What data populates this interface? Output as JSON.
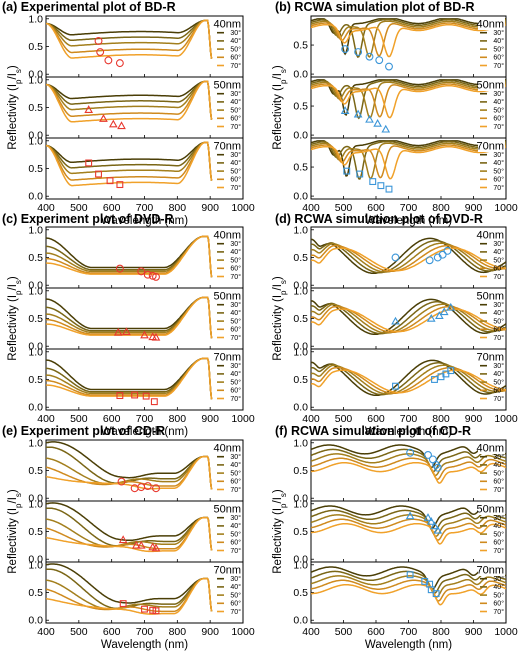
{
  "figure": {
    "colors": {
      "30": "#4a3e06",
      "40": "#7a6616",
      "50": "#a37f1d",
      "60": "#cf8a1e",
      "70": "#f0a12a"
    },
    "marker_colors": {
      "experiment": "#e8382f",
      "simulation": "#3a95d8"
    },
    "thickness_labels": [
      "40nm",
      "50nm",
      "70nm"
    ],
    "angle_labels": [
      "30°",
      "40°",
      "50°",
      "60°",
      "70°"
    ],
    "xlabel": "Wavelength (nm)",
    "ylabel": "Reflectivity (I",
    "ylabel_sub1": "p",
    "ylabel_mid": "/I",
    "ylabel_sub2": "s",
    "ylabel_end": ")"
  },
  "chart_data": [
    {
      "id": "a",
      "type": "line",
      "title": "(a) Experimental plot of BD-R",
      "kind": "experiment",
      "disc": "BD-R",
      "xlim": [
        400,
        1000
      ],
      "xticks": [
        400,
        500,
        600,
        700,
        800,
        900,
        1000
      ],
      "subplots": [
        {
          "thickness": "40nm",
          "ylim": [
            -0.05,
            1.05
          ],
          "yticks": [
            0.0,
            0.5,
            1.0
          ],
          "markers": [
            [
              560,
              0.6
            ],
            [
              565,
              0.4
            ],
            [
              590,
              0.25
            ],
            [
              625,
              0.2
            ]
          ],
          "marker_shape": "circle"
        },
        {
          "thickness": "50nm",
          "ylim": [
            -0.05,
            1.05
          ],
          "yticks": [
            0.0,
            0.5,
            1.0
          ],
          "markers": [
            [
              530,
              0.46
            ],
            [
              575,
              0.3
            ],
            [
              605,
              0.2
            ],
            [
              630,
              0.17
            ]
          ],
          "marker_shape": "triangle"
        },
        {
          "thickness": "70nm",
          "ylim": [
            -0.05,
            1.05
          ],
          "yticks": [
            0.0,
            0.5,
            1.0
          ],
          "markers": [
            [
              530,
              0.6
            ],
            [
              560,
              0.4
            ],
            [
              595,
              0.28
            ],
            [
              625,
              0.21
            ]
          ],
          "marker_shape": "square"
        }
      ]
    },
    {
      "id": "b",
      "type": "line",
      "title": "(b) RCWA simulation plot of BD-R",
      "kind": "simulation",
      "disc": "BD-R",
      "xlim": [
        400,
        1000
      ],
      "xticks": [
        400,
        500,
        600,
        700,
        800,
        900,
        1000
      ],
      "subplots": [
        {
          "thickness": "40nm",
          "ylim": [
            -0.05,
            1.0
          ],
          "yticks": [
            0.0,
            0.5
          ],
          "markers": [
            [
              505,
              0.43
            ],
            [
              545,
              0.38
            ],
            [
              580,
              0.3
            ],
            [
              610,
              0.24
            ],
            [
              640,
              0.13
            ]
          ],
          "marker_shape": "circle"
        },
        {
          "thickness": "50nm",
          "ylim": [
            -0.05,
            1.0
          ],
          "yticks": [
            0.0,
            0.5
          ],
          "markers": [
            [
              505,
              0.42
            ],
            [
              545,
              0.36
            ],
            [
              580,
              0.27
            ],
            [
              605,
              0.2
            ],
            [
              630,
              0.1
            ]
          ],
          "marker_shape": "triangle"
        },
        {
          "thickness": "70nm",
          "ylim": [
            -0.05,
            1.0
          ],
          "yticks": [
            0.0,
            0.5
          ],
          "markers": [
            [
              510,
              0.43
            ],
            [
              550,
              0.38
            ],
            [
              590,
              0.25
            ],
            [
              615,
              0.18
            ],
            [
              640,
              0.12
            ]
          ],
          "marker_shape": "square"
        }
      ]
    },
    {
      "id": "c",
      "type": "line",
      "title": "(c) Experiment plot of DVD-R",
      "kind": "experiment",
      "disc": "DVD-R",
      "xlim": [
        400,
        1000
      ],
      "xticks": [
        400,
        500,
        600,
        700,
        800,
        900,
        1000
      ],
      "subplots": [
        {
          "thickness": "40nm",
          "ylim": [
            -0.05,
            1.05
          ],
          "yticks": [
            0.0,
            0.5,
            1.0
          ],
          "markers": [
            [
              625,
              0.3
            ],
            [
              690,
              0.25
            ],
            [
              710,
              0.19
            ],
            [
              725,
              0.17
            ],
            [
              735,
              0.15
            ]
          ],
          "marker_shape": "circle"
        },
        {
          "thickness": "50nm",
          "ylim": [
            -0.05,
            1.05
          ],
          "yticks": [
            0.0,
            0.5,
            1.0
          ],
          "markers": [
            [
              620,
              0.25
            ],
            [
              645,
              0.26
            ],
            [
              700,
              0.2
            ],
            [
              725,
              0.17
            ],
            [
              735,
              0.16
            ]
          ],
          "marker_shape": "triangle"
        },
        {
          "thickness": "70nm",
          "ylim": [
            -0.05,
            1.05
          ],
          "yticks": [
            0.0,
            0.5,
            1.0
          ],
          "markers": [
            [
              625,
              0.21
            ],
            [
              670,
              0.22
            ],
            [
              705,
              0.2
            ],
            [
              730,
              0.1
            ]
          ],
          "marker_shape": "square"
        }
      ]
    },
    {
      "id": "d",
      "type": "line",
      "title": "(d) RCWA simulation plot of DVD-R",
      "kind": "simulation",
      "disc": "DVD-R",
      "xlim": [
        400,
        1000
      ],
      "xticks": [
        400,
        500,
        600,
        700,
        800,
        900,
        1000
      ],
      "subplots": [
        {
          "thickness": "40nm",
          "ylim": [
            -0.05,
            1.05
          ],
          "yticks": [
            0.0,
            0.5,
            1.0
          ],
          "markers": [
            [
              660,
              0.5
            ],
            [
              765,
              0.45
            ],
            [
              790,
              0.5
            ],
            [
              805,
              0.55
            ],
            [
              820,
              0.62
            ]
          ],
          "marker_shape": "circle"
        },
        {
          "thickness": "50nm",
          "ylim": [
            -0.05,
            1.05
          ],
          "yticks": [
            0.0,
            0.5,
            1.0
          ],
          "markers": [
            [
              660,
              0.45
            ],
            [
              770,
              0.5
            ],
            [
              795,
              0.55
            ],
            [
              810,
              0.62
            ],
            [
              830,
              0.7
            ]
          ],
          "marker_shape": "triangle"
        },
        {
          "thickness": "70nm",
          "ylim": [
            -0.05,
            1.05
          ],
          "yticks": [
            0.0,
            0.5,
            1.0
          ],
          "markers": [
            [
              660,
              0.38
            ],
            [
              780,
              0.5
            ],
            [
              800,
              0.55
            ],
            [
              815,
              0.6
            ],
            [
              830,
              0.66
            ]
          ],
          "marker_shape": "square"
        }
      ]
    },
    {
      "id": "e",
      "type": "line",
      "title": "(e) Experiment plot of CD-R",
      "kind": "experiment",
      "disc": "CD-R",
      "xlim": [
        400,
        1000
      ],
      "xticks": [
        400,
        500,
        600,
        700,
        800,
        900,
        1000
      ],
      "subplots": [
        {
          "thickness": "40nm",
          "ylim": [
            -0.05,
            1.05
          ],
          "yticks": [
            0.0,
            0.5,
            1.0
          ],
          "markers": [
            [
              630,
              0.3
            ],
            [
              670,
              0.18
            ],
            [
              690,
              0.2
            ],
            [
              710,
              0.22
            ],
            [
              735,
              0.18
            ]
          ],
          "marker_shape": "circle"
        },
        {
          "thickness": "50nm",
          "ylim": [
            -0.05,
            1.05
          ],
          "yticks": [
            0.0,
            0.5,
            1.0
          ],
          "markers": [
            [
              635,
              0.35
            ],
            [
              675,
              0.25
            ],
            [
              690,
              0.25
            ],
            [
              725,
              0.22
            ],
            [
              735,
              0.2
            ]
          ],
          "marker_shape": "triangle"
        },
        {
          "thickness": "70nm",
          "ylim": [
            -0.05,
            1.05
          ],
          "yticks": [
            0.0,
            0.5,
            1.0
          ],
          "markers": [
            [
              635,
              0.3
            ],
            [
              700,
              0.2
            ],
            [
              725,
              0.18
            ],
            [
              735,
              0.17
            ]
          ],
          "marker_shape": "square"
        }
      ]
    },
    {
      "id": "f",
      "type": "line",
      "title": "(f) RCWA simulation plot of CD-R",
      "kind": "simulation",
      "disc": "CD-R",
      "xlim": [
        400,
        1000
      ],
      "xticks": [
        400,
        500,
        600,
        700,
        800,
        900,
        1000
      ],
      "subplots": [
        {
          "thickness": "40nm",
          "ylim": [
            -0.05,
            1.05
          ],
          "yticks": [
            0.0,
            0.5,
            1.0
          ],
          "markers": [
            [
              705,
              0.82
            ],
            [
              760,
              0.78
            ],
            [
              775,
              0.7
            ],
            [
              785,
              0.6
            ],
            [
              790,
              0.55
            ]
          ],
          "marker_shape": "circle"
        },
        {
          "thickness": "50nm",
          "ylim": [
            -0.05,
            1.05
          ],
          "yticks": [
            0.0,
            0.5,
            1.0
          ],
          "markers": [
            [
              705,
              0.78
            ],
            [
              760,
              0.75
            ],
            [
              770,
              0.68
            ],
            [
              780,
              0.6
            ],
            [
              790,
              0.52
            ]
          ],
          "marker_shape": "triangle"
        },
        {
          "thickness": "70nm",
          "ylim": [
            -0.05,
            1.05
          ],
          "yticks": [
            0.0,
            0.5,
            1.0
          ],
          "markers": [
            [
              705,
              0.82
            ],
            [
              750,
              0.7
            ],
            [
              765,
              0.65
            ],
            [
              770,
              0.55
            ],
            [
              785,
              0.48
            ]
          ],
          "marker_shape": "square"
        }
      ]
    }
  ]
}
